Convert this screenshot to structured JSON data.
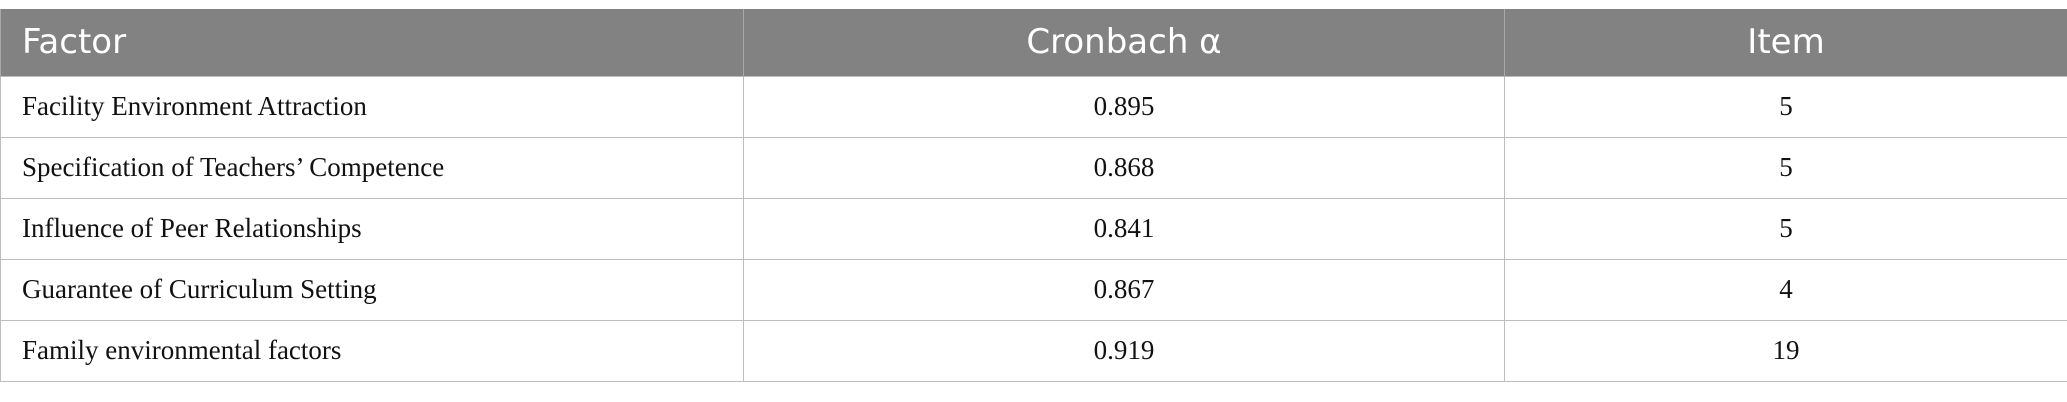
{
  "table": {
    "headers": [
      "Factor",
      "Cronbach α",
      "Item"
    ],
    "rows": [
      [
        "Facility Environment Attraction",
        "0.895",
        "5"
      ],
      [
        "Specification of Teachers’ Competence",
        "0.868",
        "5"
      ],
      [
        "Influence of Peer Relationships",
        "0.841",
        "5"
      ],
      [
        "Guarantee of Curriculum Setting",
        "0.867",
        "4"
      ],
      [
        "Family environmental factors",
        "0.919",
        "19"
      ]
    ]
  },
  "colors": {
    "header_bg": "#818281",
    "header_text": "#ffffff",
    "border": "#bdbdbd"
  }
}
